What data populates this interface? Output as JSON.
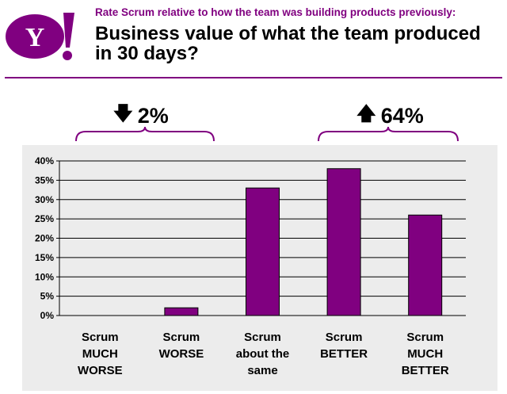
{
  "header": {
    "logo_text": "Y!",
    "subtitle": "Rate Scrum relative to how the team was building products previously:",
    "title": "Business value of what the team produced in 30 days?"
  },
  "callouts": [
    {
      "arrow": "down",
      "label": "2%"
    },
    {
      "arrow": "up",
      "label": "64%"
    }
  ],
  "colors": {
    "brand": "#800080",
    "bar": "#800080",
    "plot_bg": "#ececec"
  },
  "chart_data": {
    "type": "bar",
    "categories": [
      [
        "Scrum",
        "MUCH",
        "WORSE"
      ],
      [
        "Scrum",
        "WORSE"
      ],
      [
        "Scrum",
        "about the",
        "same"
      ],
      [
        "Scrum",
        "BETTER"
      ],
      [
        "Scrum",
        "MUCH",
        "BETTER"
      ]
    ],
    "values": [
      0,
      2,
      33,
      38,
      26
    ],
    "ylim": [
      0,
      40
    ],
    "yticks": [
      "0%",
      "5%",
      "10%",
      "15%",
      "20%",
      "25%",
      "30%",
      "35%",
      "40%"
    ],
    "grid": true,
    "title": "",
    "xlabel": "",
    "ylabel": ""
  }
}
